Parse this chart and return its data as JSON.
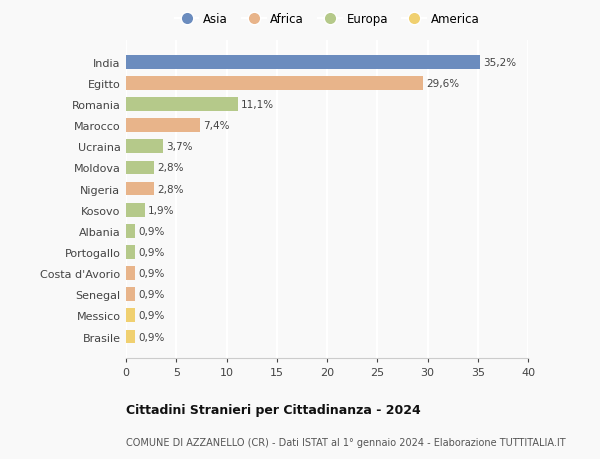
{
  "countries": [
    "India",
    "Egitto",
    "Romania",
    "Marocco",
    "Ucraina",
    "Moldova",
    "Nigeria",
    "Kosovo",
    "Albania",
    "Portogallo",
    "Costa d'Avorio",
    "Senegal",
    "Messico",
    "Brasile"
  ],
  "values": [
    35.2,
    29.6,
    11.1,
    7.4,
    3.7,
    2.8,
    2.8,
    1.9,
    0.9,
    0.9,
    0.9,
    0.9,
    0.9,
    0.9
  ],
  "labels": [
    "35,2%",
    "29,6%",
    "11,1%",
    "7,4%",
    "3,7%",
    "2,8%",
    "2,8%",
    "1,9%",
    "0,9%",
    "0,9%",
    "0,9%",
    "0,9%",
    "0,9%",
    "0,9%"
  ],
  "continents": [
    "Asia",
    "Africa",
    "Europa",
    "Africa",
    "Europa",
    "Europa",
    "Africa",
    "Europa",
    "Europa",
    "Europa",
    "Africa",
    "Africa",
    "America",
    "America"
  ],
  "colors": {
    "Asia": "#6b8cbe",
    "Africa": "#e8b48a",
    "Europa": "#b5c98a",
    "America": "#f0d070"
  },
  "legend_order": [
    "Asia",
    "Africa",
    "Europa",
    "America"
  ],
  "xlim": [
    0,
    40
  ],
  "xticks": [
    0,
    5,
    10,
    15,
    20,
    25,
    30,
    35,
    40
  ],
  "title": "Cittadini Stranieri per Cittadinanza - 2024",
  "subtitle": "COMUNE DI AZZANELLO (CR) - Dati ISTAT al 1° gennaio 2024 - Elaborazione TUTTITALIA.IT",
  "bg_color": "#f9f9f9",
  "grid_color": "#ffffff"
}
